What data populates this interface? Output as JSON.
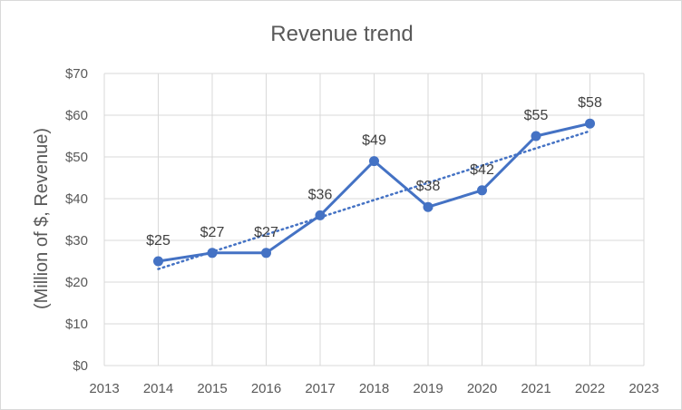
{
  "chart_data": {
    "type": "line",
    "title": "Revenue trend",
    "xlabel": "",
    "ylabel": "(Million of $, Revenue)",
    "xlim": [
      2013,
      2023
    ],
    "ylim": [
      0,
      70
    ],
    "x_ticks": [
      "2013",
      "2014",
      "2015",
      "2016",
      "2017",
      "2018",
      "2019",
      "2020",
      "2021",
      "2022",
      "2023"
    ],
    "y_ticks": [
      "$0",
      "$10",
      "$20",
      "$30",
      "$40",
      "$50",
      "$60",
      "$70"
    ],
    "grid": true,
    "legend": "none",
    "series": [
      {
        "name": "Revenue",
        "x": [
          2014,
          2015,
          2016,
          2017,
          2018,
          2019,
          2020,
          2021,
          2022
        ],
        "values": [
          25,
          27,
          27,
          36,
          49,
          38,
          42,
          55,
          58
        ],
        "labels": [
          "$25",
          "$27",
          "$27",
          "$36",
          "$49",
          "$38",
          "$42",
          "$55",
          "$58"
        ],
        "color": "#4472C4"
      }
    ],
    "trendline": {
      "type": "linear",
      "color": "#4472C4",
      "style": "dotted"
    }
  }
}
